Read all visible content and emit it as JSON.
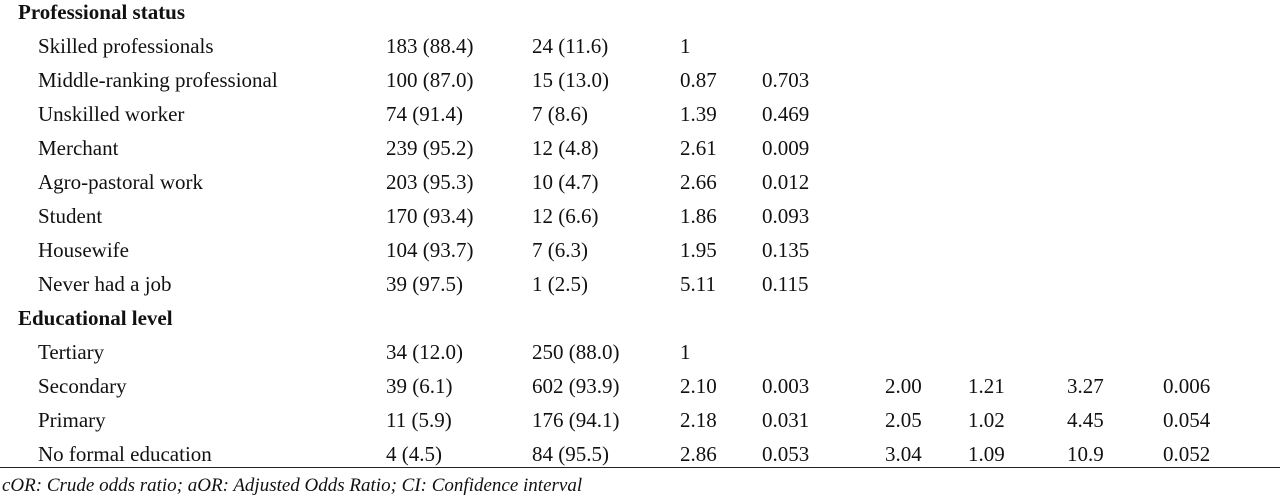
{
  "sections": [
    {
      "title": "Professional status",
      "rows": [
        [
          "Skilled professionals",
          "183 (88.4)",
          "24 (11.6)",
          "1"
        ],
        [
          "Middle-ranking professional",
          "100 (87.0)",
          "15 (13.0)",
          "0.87",
          "0.703"
        ],
        [
          "Unskilled worker",
          "74 (91.4)",
          "7 (8.6)",
          "1.39",
          "0.469"
        ],
        [
          "Merchant",
          "239 (95.2)",
          "12 (4.8)",
          "2.61",
          "0.009"
        ],
        [
          "Agro-pastoral work",
          "203 (95.3)",
          "10 (4.7)",
          "2.66",
          "0.012"
        ],
        [
          "Student",
          "170 (93.4)",
          "12 (6.6)",
          "1.86",
          "0.093"
        ],
        [
          "Housewife",
          "104 (93.7)",
          "7 (6.3)",
          "1.95",
          "0.135"
        ],
        [
          "Never had a job",
          "39 (97.5)",
          "1 (2.5)",
          "5.11",
          "0.115"
        ]
      ]
    },
    {
      "title": "Educational level",
      "rows": [
        [
          "Tertiary",
          "34 (12.0)",
          "250 (88.0)",
          "1"
        ],
        [
          "Secondary",
          "39 (6.1)",
          "602 (93.9)",
          "2.10",
          "0.003",
          "2.00",
          "1.21",
          "3.27",
          "0.006"
        ],
        [
          "Primary",
          "11 (5.9)",
          "176 (94.1)",
          "2.18",
          "0.031",
          "2.05",
          "1.02",
          "4.45",
          "0.054"
        ],
        [
          "No formal education",
          "4 (4.5)",
          "84 (95.5)",
          "2.86",
          "0.053",
          "3.04",
          "1.09",
          "10.9",
          "0.052"
        ]
      ]
    }
  ],
  "footnote": "cOR: Crude odds ratio; aOR: Adjusted Odds Ratio; CI: Confidence interval"
}
